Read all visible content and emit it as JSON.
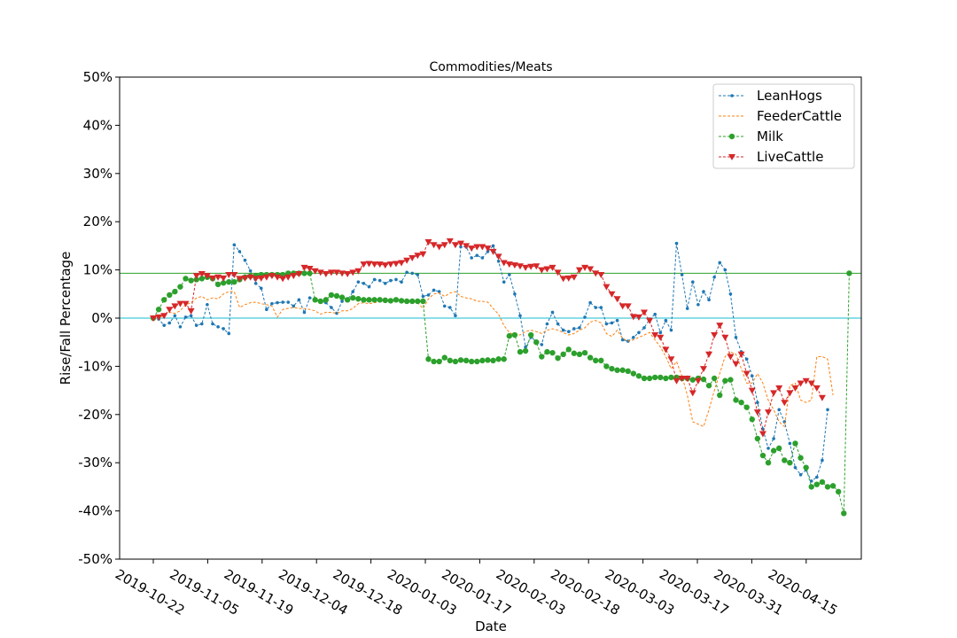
{
  "chart_data": {
    "type": "line",
    "title": "Commodities/Meats",
    "xlabel": "Date",
    "ylabel": "Rise/Fall Percentage",
    "ylim": [
      -50,
      50
    ],
    "y_ticks": [
      "-50%",
      "-40%",
      "-30%",
      "-20%",
      "-10%",
      "0%",
      "10%",
      "20%",
      "30%",
      "40%",
      "50%"
    ],
    "x_ticks": [
      "2019-10-22",
      "2019-11-05",
      "2019-11-19",
      "2019-12-04",
      "2019-12-18",
      "2020-01-03",
      "2020-01-17",
      "2020-02-03",
      "2020-02-18",
      "2020-03-03",
      "2020-03-17",
      "2020-03-31",
      "2020-04-15"
    ],
    "legend_position": "top-right",
    "reference_lines": [
      {
        "value": 0,
        "color": "#17becf"
      },
      {
        "value": 9.3,
        "color": "#2ca02c"
      }
    ],
    "series": [
      {
        "name": "LeanHogs",
        "color": "#1f77b4",
        "marker": "dot-small",
        "values": [
          0.0,
          -0.2,
          -1.5,
          -1.0,
          0.5,
          -1.8,
          0.2,
          0.5,
          -1.5,
          -1.2,
          2.8,
          -1.2,
          -1.8,
          -2.2,
          -3.2,
          15.2,
          13.8,
          12.0,
          9.8,
          7.2,
          6.2,
          1.8,
          3.0,
          3.2,
          3.3,
          3.3,
          2.5,
          3.8,
          1.2,
          4.2,
          4.0,
          3.5,
          3.2,
          2.2,
          1.0,
          3.5,
          3.8,
          5.5,
          7.5,
          7.2,
          6.5,
          8.0,
          7.8,
          7.2,
          7.8,
          8.0,
          7.5,
          9.5,
          9.3,
          9.0,
          4.5,
          4.8,
          5.8,
          5.5,
          2.5,
          2.2,
          0.5,
          14.8,
          14.8,
          12.5,
          13.0,
          12.5,
          13.8,
          15.0,
          11.8,
          7.5,
          9.0,
          5.0,
          0.5,
          -6.0,
          -4.0,
          -4.8,
          -5.5,
          -1.2,
          1.2,
          -1.2,
          -2.5,
          -2.8,
          -2.2,
          -2.0,
          0.2,
          3.2,
          2.2,
          2.2,
          -1.2,
          -1.0,
          -0.5,
          -4.5,
          -4.8,
          -4.0,
          -3.0,
          -2.0,
          -0.2,
          0.8,
          -3.0,
          -0.5,
          -2.5,
          15.5,
          9.0,
          2.0,
          7.5,
          2.8,
          5.5,
          3.8,
          8.5,
          11.5,
          10.0,
          5.0,
          -4.0,
          -7.0,
          -8.5,
          -12.0,
          -17.5,
          -23.0,
          -27.0,
          -25.0,
          -19.0,
          -21.5,
          -26.0,
          -31.0,
          -32.5,
          -31.5,
          -33.8,
          -33.0,
          -29.5,
          -19.0
        ]
      },
      {
        "name": "FeederCattle",
        "color": "#ff7f0e",
        "marker": "none",
        "values": [
          0.0,
          -0.2,
          0.8,
          1.2,
          1.0,
          1.5,
          2.8,
          3.2,
          4.2,
          4.5,
          3.8,
          4.2,
          4.0,
          5.0,
          5.5,
          5.5,
          2.2,
          2.8,
          3.2,
          3.3,
          3.0,
          2.8,
          2.5,
          0.2,
          1.8,
          2.0,
          2.2,
          2.0,
          2.0,
          1.8,
          1.5,
          0.8,
          1.2,
          1.2,
          1.0,
          1.5,
          1.5,
          2.0,
          3.0,
          3.2,
          3.0,
          3.2,
          3.5,
          3.5,
          3.5,
          3.8,
          3.5,
          3.2,
          3.5,
          3.2,
          2.0,
          4.0,
          5.0,
          5.2,
          4.5,
          5.2,
          5.5,
          4.5,
          4.2,
          4.0,
          3.5,
          3.5,
          3.3,
          2.0,
          0.8,
          -1.5,
          -3.0,
          -3.5,
          -3.5,
          -2.8,
          -2.5,
          -2.8,
          -3.2,
          -2.5,
          -2.2,
          -2.5,
          -3.0,
          -3.5,
          -3.2,
          -2.5,
          -2.0,
          -0.8,
          -0.5,
          -1.0,
          -3.2,
          -3.8,
          -2.5,
          -4.2,
          -4.8,
          -4.5,
          -4.0,
          -3.5,
          -3.0,
          -4.5,
          -6.0,
          -8.0,
          -10.5,
          -9.0,
          -12.0,
          -16.0,
          -21.5,
          -22.0,
          -22.5,
          -19.0,
          -15.0,
          -11.5,
          -8.0,
          -7.0,
          -7.5,
          -10.5,
          -13.5,
          -13.5,
          -11.5,
          -13.5,
          -17.0,
          -19.0,
          -21.5,
          -22.5,
          -14.0,
          -13.5,
          -17.0,
          -17.5,
          -17.0,
          -8.0,
          -8.0,
          -8.5,
          -16.0
        ]
      },
      {
        "name": "Milk",
        "color": "#2ca02c",
        "marker": "dot-large",
        "values": [
          0.0,
          1.8,
          3.8,
          4.8,
          5.5,
          6.5,
          8.2,
          7.8,
          8.0,
          8.2,
          8.5,
          8.2,
          7.0,
          7.3,
          7.5,
          7.5,
          8.0,
          8.5,
          8.7,
          8.8,
          9.0,
          9.0,
          9.0,
          9.0,
          9.0,
          9.3,
          9.3,
          9.3,
          9.3,
          9.3,
          3.8,
          3.5,
          3.8,
          4.8,
          4.6,
          4.3,
          3.8,
          4.2,
          4.0,
          3.8,
          3.8,
          3.8,
          3.8,
          3.7,
          3.6,
          3.8,
          3.6,
          3.5,
          3.5,
          3.5,
          3.5,
          -8.5,
          -9.0,
          -9.0,
          -8.2,
          -8.8,
          -9.0,
          -8.7,
          -8.8,
          -9.0,
          -9.0,
          -8.8,
          -8.7,
          -8.8,
          -8.5,
          -8.5,
          -3.7,
          -3.5,
          -7.0,
          -6.8,
          -3.5,
          -5.0,
          -8.0,
          -7.0,
          -7.2,
          -8.3,
          -7.5,
          -6.5,
          -7.3,
          -7.5,
          -7.2,
          -8.2,
          -8.8,
          -8.8,
          -10.0,
          -10.5,
          -10.8,
          -10.8,
          -11.0,
          -11.5,
          -12.0,
          -12.5,
          -12.5,
          -12.3,
          -12.3,
          -12.5,
          -12.3,
          -12.3,
          -12.5,
          -12.5,
          -12.8,
          -12.5,
          -12.7,
          -14.0,
          -12.5,
          -16.0,
          -13.0,
          -12.8,
          -17.0,
          -17.5,
          -18.5,
          -21.0,
          -25.0,
          -28.5,
          -30.0,
          -27.5,
          -27.0,
          -29.5,
          -30.0,
          -26.0,
          -29.0,
          -31.0,
          -35.0,
          -34.5,
          -34.0,
          -35.0,
          -34.8,
          -36.0,
          -40.5,
          9.3
        ]
      },
      {
        "name": "LiveCattle",
        "color": "#d62728",
        "marker": "triangle-down",
        "values": [
          0.0,
          0.2,
          0.5,
          1.8,
          2.5,
          3.0,
          3.0,
          1.5,
          8.8,
          9.2,
          8.8,
          8.3,
          8.5,
          8.3,
          9.0,
          9.0,
          8.2,
          8.3,
          8.5,
          8.2,
          8.3,
          8.5,
          8.8,
          8.5,
          8.2,
          8.5,
          8.8,
          9.2,
          10.5,
          10.3,
          9.8,
          9.5,
          9.2,
          9.5,
          9.5,
          9.3,
          9.2,
          9.5,
          9.8,
          11.2,
          11.3,
          11.2,
          11.2,
          11.0,
          11.2,
          11.3,
          11.5,
          12.0,
          12.5,
          13.0,
          13.3,
          15.8,
          15.2,
          14.8,
          15.2,
          16.0,
          15.2,
          15.5,
          15.0,
          14.5,
          14.8,
          14.8,
          14.5,
          13.8,
          12.8,
          11.5,
          11.2,
          11.0,
          10.8,
          10.5,
          10.7,
          10.8,
          10.0,
          10.2,
          10.5,
          9.5,
          8.2,
          8.3,
          8.5,
          10.0,
          10.5,
          10.2,
          9.3,
          9.0,
          6.5,
          5.0,
          4.0,
          2.5,
          2.5,
          0.3,
          0.2,
          1.2,
          -0.5,
          -3.5,
          -4.0,
          -6.5,
          -8.5,
          -13.0,
          -12.5,
          -12.5,
          -15.5,
          -13.0,
          -10.5,
          -7.5,
          -3.5,
          -1.5,
          -4.0,
          -8.0,
          -9.5,
          -7.5,
          -11.5,
          -15.0,
          -19.5,
          -24.0,
          -19.5,
          -15.5,
          -14.5,
          -17.5,
          -15.5,
          -14.5,
          -13.5,
          -13.0,
          -13.5,
          -14.5,
          -16.5
        ]
      }
    ]
  }
}
